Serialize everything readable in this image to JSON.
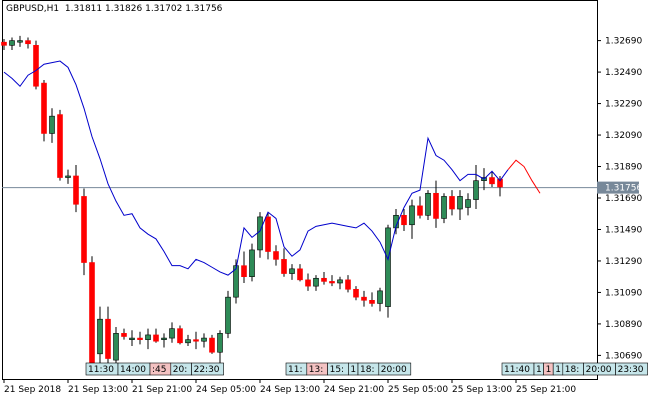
{
  "header": {
    "symbol": "GBPUSD,H1",
    "open": "1.31811",
    "high": "1.31826",
    "low": "1.31702",
    "close": "1.31756"
  },
  "chart_data": {
    "type": "candlestick",
    "ylim": [
      1.3054,
      1.3284
    ],
    "y_ticks": [
      "1.32690",
      "1.32490",
      "1.32290",
      "1.32090",
      "1.31890",
      "1.31690",
      "1.31490",
      "1.31290",
      "1.31090",
      "1.30890",
      "1.30690"
    ],
    "x_ticks": [
      "21 Sep 2018",
      "21 Sep 13:00",
      "21 Sep 21:00",
      "24 Sep 05:00",
      "24 Sep 13:00",
      "24 Sep 21:00",
      "25 Sep 05:00",
      "25 Sep 13:00",
      "25 Sep 21:00"
    ],
    "current_price": "1.31756",
    "bar_count": 67,
    "candles": [
      [
        1.3268,
        1.327,
        1.3263,
        1.3266
      ],
      [
        1.3266,
        1.3271,
        1.3263,
        1.3269
      ],
      [
        1.3268,
        1.3272,
        1.3265,
        1.3269
      ],
      [
        1.3269,
        1.3271,
        1.3264,
        1.3267
      ],
      [
        1.3266,
        1.3269,
        1.3238,
        1.324
      ],
      [
        1.3242,
        1.3244,
        1.3205,
        1.321
      ],
      [
        1.321,
        1.3226,
        1.3204,
        1.3221
      ],
      [
        1.3222,
        1.3225,
        1.318,
        1.3182
      ],
      [
        1.3182,
        1.3187,
        1.3178,
        1.3183
      ],
      [
        1.3183,
        1.319,
        1.316,
        1.3165
      ],
      [
        1.317,
        1.3175,
        1.312,
        1.3128
      ],
      [
        1.3128,
        1.3132,
        1.306,
        1.3062
      ],
      [
        1.307,
        1.31,
        1.3064,
        1.3092
      ],
      [
        1.3092,
        1.31,
        1.3064,
        1.3067
      ],
      [
        1.3066,
        1.3087,
        1.3062,
        1.3083
      ],
      [
        1.3083,
        1.3086,
        1.3079,
        1.3081
      ],
      [
        1.3079,
        1.3085,
        1.3075,
        1.308
      ],
      [
        1.308,
        1.3084,
        1.3076,
        1.3079
      ],
      [
        1.3079,
        1.3086,
        1.3073,
        1.3082
      ],
      [
        1.3082,
        1.3086,
        1.3077,
        1.3078
      ],
      [
        1.3079,
        1.3083,
        1.3074,
        1.308
      ],
      [
        1.308,
        1.309,
        1.3077,
        1.3086
      ],
      [
        1.3086,
        1.3088,
        1.3076,
        1.3077
      ],
      [
        1.3077,
        1.3082,
        1.3075,
        1.3079
      ],
      [
        1.3079,
        1.3084,
        1.3073,
        1.3078
      ],
      [
        1.3078,
        1.3083,
        1.3074,
        1.308
      ],
      [
        1.308,
        1.3082,
        1.307,
        1.3071
      ],
      [
        1.3071,
        1.3085,
        1.3064,
        1.3083
      ],
      [
        1.3083,
        1.311,
        1.308,
        1.3106
      ],
      [
        1.3106,
        1.313,
        1.3102,
        1.3126
      ],
      [
        1.3126,
        1.3135,
        1.3115,
        1.3119
      ],
      [
        1.3119,
        1.314,
        1.3116,
        1.3136
      ],
      [
        1.3136,
        1.316,
        1.3131,
        1.3157
      ],
      [
        1.3157,
        1.316,
        1.313,
        1.3135
      ],
      [
        1.3135,
        1.3139,
        1.3126,
        1.313
      ],
      [
        1.313,
        1.3137,
        1.3119,
        1.3121
      ],
      [
        1.3121,
        1.3127,
        1.3117,
        1.3124
      ],
      [
        1.3124,
        1.3127,
        1.3116,
        1.3117
      ],
      [
        1.3117,
        1.3121,
        1.311,
        1.3113
      ],
      [
        1.3113,
        1.312,
        1.311,
        1.3118
      ],
      [
        1.3118,
        1.3122,
        1.3114,
        1.3116
      ],
      [
        1.3116,
        1.312,
        1.3113,
        1.3115
      ],
      [
        1.3115,
        1.3119,
        1.3111,
        1.3117
      ],
      [
        1.3117,
        1.312,
        1.3109,
        1.3111
      ],
      [
        1.3111,
        1.3113,
        1.3104,
        1.3106
      ],
      [
        1.3106,
        1.311,
        1.31,
        1.3104
      ],
      [
        1.3104,
        1.3109,
        1.31,
        1.3102
      ],
      [
        1.3102,
        1.3112,
        1.3097,
        1.311
      ],
      [
        1.31,
        1.3152,
        1.3093,
        1.315
      ],
      [
        1.315,
        1.3162,
        1.3146,
        1.3158
      ],
      [
        1.3158,
        1.3162,
        1.3148,
        1.3152
      ],
      [
        1.3152,
        1.3168,
        1.3143,
        1.3164
      ],
      [
        1.3164,
        1.317,
        1.3156,
        1.3158
      ],
      [
        1.3158,
        1.3174,
        1.3155,
        1.3172
      ],
      [
        1.3172,
        1.318,
        1.315,
        1.3156
      ],
      [
        1.3156,
        1.3172,
        1.3153,
        1.317
      ],
      [
        1.317,
        1.3174,
        1.3158,
        1.3162
      ],
      [
        1.3162,
        1.3174,
        1.3155,
        1.317
      ],
      [
        1.3163,
        1.3172,
        1.3158,
        1.3168
      ],
      [
        1.3168,
        1.319,
        1.3162,
        1.318
      ],
      [
        1.318,
        1.3188,
        1.3174,
        1.3182
      ],
      [
        1.3182,
        1.3186,
        1.3176,
        1.3178
      ],
      [
        1.3181,
        1.3183,
        1.317,
        1.3176
      ]
    ],
    "ma_line": [
      1.3249,
      1.3245,
      1.324,
      1.3247,
      1.325,
      1.3254,
      1.3255,
      1.3256,
      1.3252,
      1.3241,
      1.3226,
      1.3208,
      1.3194,
      1.3178,
      1.3167,
      1.3158,
      1.3159,
      1.315,
      1.3146,
      1.3143,
      1.3135,
      1.3126,
      1.3126,
      1.3124,
      1.313,
      1.3128,
      1.3125,
      1.3122,
      1.312,
      1.3124,
      1.315,
      1.3144,
      1.3148,
      1.316,
      1.3156,
      1.3138,
      1.3132,
      1.3136,
      1.3148,
      1.3151,
      1.3152,
      1.3153,
      1.3152,
      1.3151,
      1.315,
      1.3153,
      1.3148,
      1.3141,
      1.313,
      1.3151,
      1.3163,
      1.3172,
      1.3174,
      1.3207,
      1.3196,
      1.3193,
      1.3187,
      1.318,
      1.3184,
      1.3184,
      1.3181,
      1.3186,
      1.318,
      1.3187,
      1.3193,
      1.3189,
      1.318,
      1.3172
    ],
    "ma_forecast_from": 63,
    "colors": {
      "bull": "#2e8b57",
      "bear": "#ff0000",
      "ma": "#0000cc",
      "forecast": "#ff0000",
      "price_line": "#778899"
    },
    "session_labels": [
      {
        "bar": 11,
        "texts": [
          "11:30",
          "14:00",
          ":45",
          "20:",
          "22:30"
        ],
        "colors": [
          "#c6e6ea",
          "#c6e6ea",
          "#f4c2c2",
          "#c6e6ea",
          "#c6e6ea"
        ]
      },
      {
        "bar": 36,
        "texts": [
          "11:",
          "13:",
          "15:",
          "1",
          "18:",
          "20:00"
        ],
        "colors": [
          "#c6e6ea",
          "#f4c2c2",
          "#c6e6ea",
          "#c6e6ea",
          "#c6e6ea",
          "#c6e6ea"
        ]
      },
      {
        "bar": 63,
        "texts": [
          "11:40",
          "1",
          "1",
          "1",
          "18:",
          "20:00",
          "23:30"
        ],
        "colors": [
          "#c6e6ea",
          "#c6e6ea",
          "#f4c2c2",
          "#c6e6ea",
          "#c6e6ea",
          "#c6e6ea",
          "#c6e6ea"
        ]
      }
    ]
  }
}
